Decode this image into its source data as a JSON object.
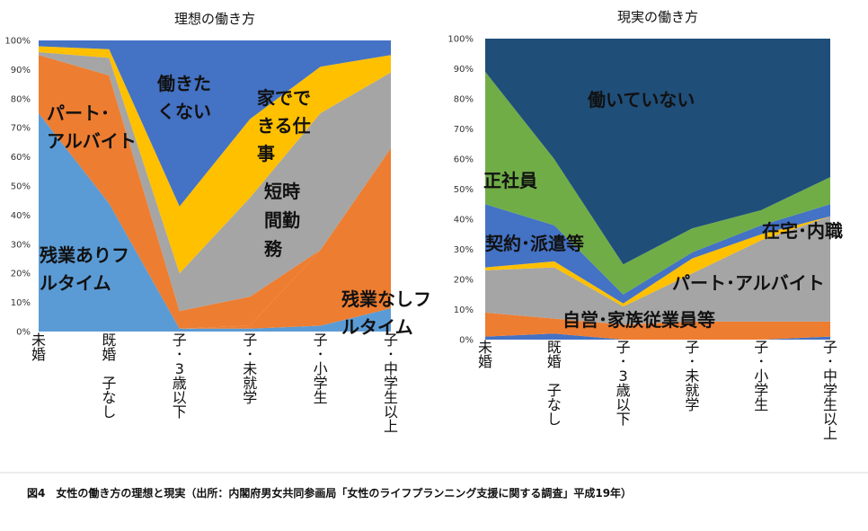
{
  "caption": "図4　女性の働き方の理想と現実（出所：内閣府男女共同参画局「女性のライフプランニング支援に関する調査」平成19年）",
  "chart_data": [
    {
      "type": "area",
      "stacked": true,
      "percent": true,
      "title": "理想の働き方",
      "categories": [
        "未婚",
        "既婚　子なし",
        "子･3歳以下",
        "子･未就学",
        "子･小学生",
        "子･中学生以上"
      ],
      "yticks": [
        "0%",
        "10%",
        "20%",
        "30%",
        "40%",
        "50%",
        "60%",
        "70%",
        "80%",
        "90%",
        "100%"
      ],
      "ylim": [
        0,
        100
      ],
      "series": [
        {
          "name": "残業ありフルタイム",
          "color": "#5b9bd5",
          "values": [
            75,
            44,
            1,
            1,
            2,
            8
          ]
        },
        {
          "name": "残業なしフルタイム",
          "color": "#ed7d31",
          "values": [
            0,
            0,
            0,
            1,
            26,
            55
          ]
        },
        {
          "name": "パート･アルバイト",
          "color": "#ed7d31",
          "values": [
            20,
            44,
            6,
            10,
            0,
            0
          ]
        },
        {
          "name": "短時間勤務",
          "color": "#a5a5a5",
          "values": [
            1,
            6,
            13,
            34,
            47,
            26
          ]
        },
        {
          "name": "家でできる仕事",
          "color": "#ffc000",
          "values": [
            2,
            3,
            23,
            27,
            16,
            6
          ]
        },
        {
          "name": "働きたくない",
          "color": "#4472c4",
          "values": [
            2,
            3,
            57,
            27,
            9,
            5
          ]
        }
      ],
      "labels": {
        "full_ot": [
          "残業ありフ",
          "ルタイム"
        ],
        "part": [
          "パート･",
          "アルバイト"
        ],
        "nowork": [
          "働きた",
          "くない"
        ],
        "home": [
          "家でで",
          "きる仕",
          "事"
        ],
        "short": [
          "短時",
          "間勤",
          "務"
        ],
        "full_noot": [
          "残業なしフ",
          "ルタイム"
        ]
      }
    },
    {
      "type": "area",
      "stacked": true,
      "percent": true,
      "title": "現実の働き方",
      "categories": [
        "未婚",
        "既婚　子なし",
        "子･3歳以下",
        "子･未就学",
        "子･小学生",
        "子･中学生以上"
      ],
      "yticks": [
        "0%",
        "10%",
        "20%",
        "30%",
        "40%",
        "50%",
        "60%",
        "70%",
        "80%",
        "90%",
        "100%"
      ],
      "ylim": [
        0,
        100
      ],
      "series": [
        {
          "name": "自営･家族従業員等 (base)",
          "color": "#4472c4",
          "values": [
            1,
            2,
            0,
            0,
            0,
            1
          ]
        },
        {
          "name": "自営･家族従業員等",
          "color": "#ed7d31",
          "values": [
            8,
            5,
            5,
            6,
            6,
            5
          ]
        },
        {
          "name": "在宅･内職",
          "color": "#a5a5a5",
          "values": [
            14,
            17,
            6,
            16,
            27,
            35
          ]
        },
        {
          "name": "パート･アルバイト",
          "color": "#ffc000",
          "values": [
            1,
            2,
            1,
            5,
            2,
            0
          ]
        },
        {
          "name": "契約･派遣等",
          "color": "#4472c4",
          "values": [
            21,
            12,
            3,
            2,
            3,
            4
          ]
        },
        {
          "name": "正社員",
          "color": "#70ad47",
          "values": [
            44,
            22,
            10,
            8,
            5,
            9
          ]
        },
        {
          "name": "働いていない",
          "color": "#1f4e79",
          "values": [
            11,
            40,
            75,
            63,
            57,
            46
          ]
        }
      ],
      "labels": {
        "nowork": "働いていない",
        "regular": "正社員",
        "contract": "契約･派遣等",
        "home": "在宅･内職",
        "part": "パート･アルバイト",
        "self": "自営･家族従業員等"
      }
    }
  ]
}
